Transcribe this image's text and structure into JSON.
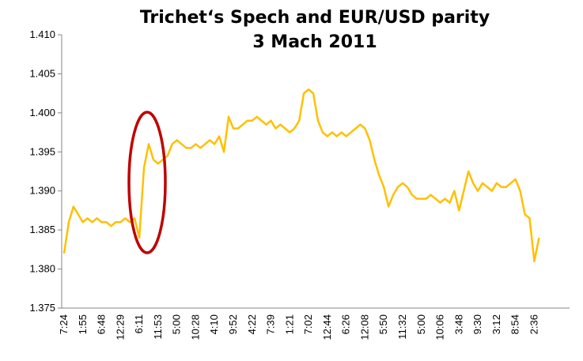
{
  "chart_data": {
    "type": "line",
    "title": "Trichet‘s Spech and EUR/USD parity",
    "subtitle": "3 Mach 2011",
    "categories": [
      "7:24",
      null,
      null,
      null,
      "1:55",
      null,
      null,
      null,
      "6:48",
      null,
      null,
      null,
      "12:29",
      null,
      null,
      null,
      "6:11",
      null,
      null,
      null,
      "11:53",
      null,
      null,
      null,
      "5:00",
      null,
      null,
      null,
      "10:28",
      null,
      null,
      null,
      "4:10",
      null,
      null,
      null,
      "9:52",
      null,
      null,
      null,
      "4:22",
      null,
      null,
      null,
      "7:39",
      null,
      null,
      null,
      "1:21",
      null,
      null,
      null,
      "7:02",
      null,
      null,
      null,
      "12:44",
      null,
      null,
      null,
      "6:26",
      null,
      null,
      null,
      "12:08",
      null,
      null,
      null,
      "5:50",
      null,
      null,
      null,
      "11:32",
      null,
      null,
      null,
      "5:00",
      null,
      null,
      null,
      "10:06",
      null,
      null,
      null,
      "3:48",
      null,
      null,
      null,
      "9:30",
      null,
      null,
      null,
      "3:12",
      null,
      null,
      null,
      "8:54",
      null,
      null,
      null,
      "2:36",
      null,
      null,
      null,
      null,
      null,
      null,
      null
    ],
    "series": [
      {
        "name": "EUR/USD",
        "color": "#ffc000",
        "values": [
          1.382,
          1.386,
          1.388,
          1.387,
          1.386,
          1.3865,
          1.386,
          1.3865,
          1.386,
          1.386,
          1.3855,
          1.386,
          1.386,
          1.3865,
          1.386,
          1.3865,
          1.384,
          1.393,
          1.396,
          1.394,
          1.3935,
          1.394,
          1.3945,
          1.396,
          1.3965,
          1.396,
          1.3955,
          1.3955,
          1.396,
          1.3955,
          1.396,
          1.3965,
          1.396,
          1.397,
          1.395,
          1.3995,
          1.398,
          1.398,
          1.3985,
          1.399,
          1.399,
          1.3995,
          1.399,
          1.3985,
          1.399,
          1.398,
          1.3985,
          1.398,
          1.3975,
          1.398,
          1.399,
          1.4025,
          1.403,
          1.4025,
          1.399,
          1.3975,
          1.397,
          1.3975,
          1.397,
          1.3975,
          1.397,
          1.3975,
          1.398,
          1.3985,
          1.398,
          1.3965,
          1.394,
          1.392,
          1.3905,
          1.388,
          1.3895,
          1.3905,
          1.391,
          1.3905,
          1.3895,
          1.389,
          1.389,
          1.389,
          1.3895,
          1.389,
          1.3885,
          1.389,
          1.3885,
          1.39,
          1.3875,
          1.39,
          1.3925,
          1.391,
          1.39,
          1.391,
          1.3905,
          1.39,
          1.391,
          1.3905,
          1.3905,
          1.391,
          1.3915,
          1.39,
          1.387,
          1.3865,
          1.381,
          1.384,
          null,
          null,
          null,
          null,
          null,
          null
        ]
      }
    ],
    "ylim": [
      1.375,
      1.41
    ],
    "yticks": [
      1.375,
      {
        "value": 1.38,
        "label": "1.380"
      },
      1.385,
      {
        "value": 1.39,
        "label": "1.390"
      },
      1.395,
      {
        "value": 1.4,
        "label": "1.400"
      },
      1.405,
      {
        "value": 1.41,
        "label": "1.410"
      }
    ]
  }
}
